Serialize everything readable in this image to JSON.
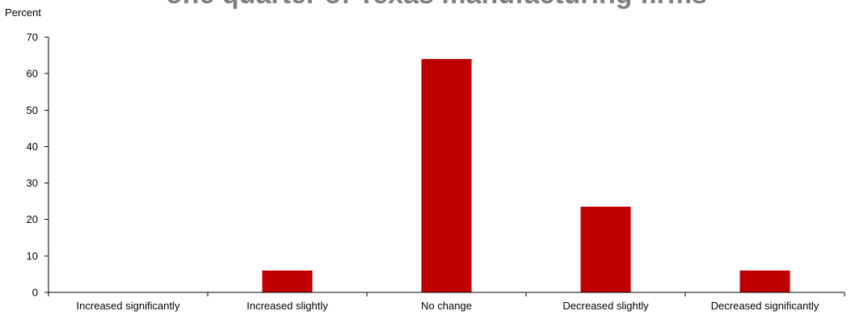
{
  "chart_data": {
    "type": "bar",
    "title": "one quarter of Texas manufacturing firms",
    "xlabel": "",
    "ylabel": "Percent",
    "categories": [
      "Increased significantly",
      "Increased slightly",
      "No change",
      "Decreased slightly",
      "Decreased significantly"
    ],
    "values": [
      0,
      6,
      64,
      23.5,
      6
    ],
    "ylim": [
      0,
      70
    ],
    "yticks": [
      0,
      10,
      20,
      30,
      40,
      50,
      60,
      70
    ],
    "grid": false,
    "legend": "none",
    "bar_color": "#c00000"
  }
}
